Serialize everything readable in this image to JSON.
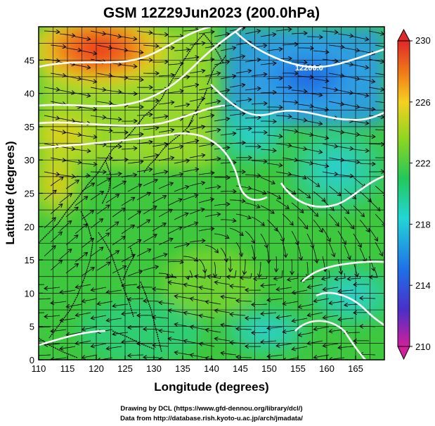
{
  "title": "GSM 12Z29Jun2023 (200.0hPa)",
  "x_axis": {
    "label": "Longitude (degrees)",
    "ticks": [
      "110",
      "115",
      "120",
      "125",
      "130",
      "135",
      "140",
      "145",
      "150",
      "155",
      "160",
      "165"
    ],
    "range": [
      110,
      170
    ]
  },
  "y_axis": {
    "label": "Latitude  (degrees)",
    "ticks": [
      "0",
      "5",
      "10",
      "15",
      "20",
      "25",
      "30",
      "35",
      "40",
      "45"
    ],
    "range": [
      0,
      50
    ]
  },
  "colorbar": {
    "ticks": [
      "230",
      "226",
      "222",
      "218",
      "214",
      "210"
    ],
    "range": [
      210,
      230
    ],
    "colors": [
      "#d0209a",
      "#4a2fc8",
      "#1f6fe8",
      "#22d6d6",
      "#22c85a",
      "#8ed620",
      "#f5d020",
      "#f07818",
      "#e02828"
    ]
  },
  "contour_label": "12200.0",
  "credits": {
    "line1": "Drawing by DCL (https://www.gfd-dennou.org/library/dcl/)",
    "line2": "Data from http://database.rish.kyoto-u.ac.jp/arch/jmadata/"
  }
}
